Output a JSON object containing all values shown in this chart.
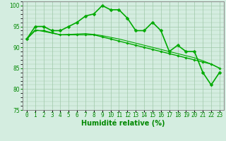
{
  "line1": {
    "x": [
      0,
      1,
      2,
      3,
      4,
      5,
      6,
      7,
      8,
      9,
      10,
      11,
      12,
      13,
      14,
      15,
      16,
      17,
      18,
      19,
      20,
      21,
      22,
      23
    ],
    "y": [
      92,
      95,
      95,
      94,
      94,
      95,
      96,
      97.5,
      98,
      100,
      99,
      99,
      97,
      94,
      94,
      96,
      94,
      89,
      90.5,
      89,
      89,
      84,
      81,
      84
    ],
    "linewidth": 1.2,
    "markersize": 2.5
  },
  "line2": {
    "x": [
      0,
      1,
      2,
      3,
      4,
      5,
      6,
      7,
      8,
      9,
      10,
      11,
      12,
      13,
      14,
      15,
      16,
      17,
      18,
      19,
      20,
      21,
      22,
      23
    ],
    "y": [
      92,
      94,
      94,
      93.5,
      93,
      93,
      93,
      93,
      93,
      92.5,
      92,
      91.5,
      91,
      90.5,
      90,
      89.5,
      89,
      88.5,
      88,
      87.5,
      87,
      86.5,
      86,
      85
    ],
    "linewidth": 1.0,
    "markersize": 1.8
  },
  "line3": {
    "x": [
      0,
      1,
      2,
      3,
      4,
      5,
      6,
      7,
      8,
      9,
      10,
      11,
      12,
      13,
      14,
      15,
      16,
      17,
      18,
      19,
      20,
      21,
      22,
      23
    ],
    "y": [
      92,
      94.2,
      93.8,
      93.4,
      93.0,
      93.1,
      93.2,
      93.3,
      93.1,
      92.8,
      92.4,
      92.0,
      91.5,
      91.0,
      90.5,
      90.0,
      89.5,
      89.0,
      88.5,
      88.0,
      87.5,
      86.8,
      86.0,
      85.0
    ],
    "linewidth": 0.8
  },
  "xlabel": "Humidité relative (%)",
  "ylim": [
    75,
    101
  ],
  "xlim": [
    -0.5,
    23.5
  ],
  "yticks": [
    75,
    80,
    85,
    90,
    95,
    100
  ],
  "xticks": [
    0,
    1,
    2,
    3,
    4,
    5,
    6,
    7,
    8,
    9,
    10,
    11,
    12,
    13,
    14,
    15,
    16,
    17,
    18,
    19,
    20,
    21,
    22,
    23
  ],
  "xtick_labels": [
    "0",
    "1",
    "2",
    "3",
    "4",
    "5",
    "6",
    "7",
    "8",
    "9",
    "10",
    "11",
    "12",
    "13",
    "14",
    "15",
    "16",
    "17",
    "18",
    "19",
    "20",
    "21",
    "22",
    "23"
  ],
  "bg_color": "#d4ede0",
  "grid_color": "#a0c8a8",
  "line_color": "#00aa00",
  "xlabel_color": "#008800",
  "tick_color": "#008800",
  "axis_color": "#888888",
  "xlabel_fontsize": 7,
  "tick_fontsize": 5.5
}
